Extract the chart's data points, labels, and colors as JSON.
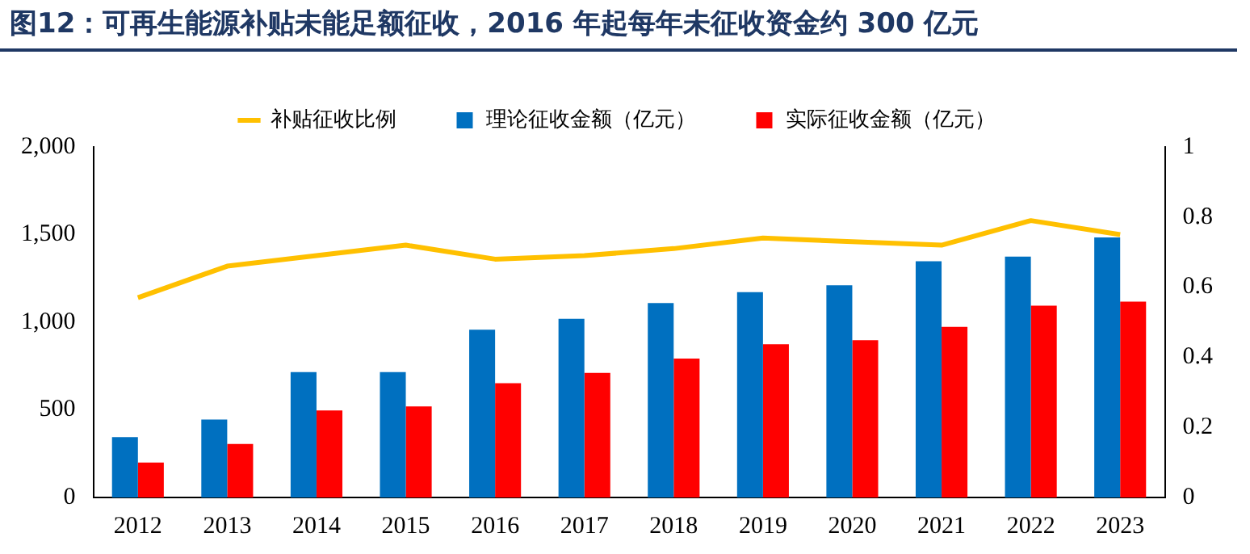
{
  "chart_data": {
    "type": "bar",
    "title": "图12：可再生能源补贴未能足额征收，2016 年起每年未征收资金约 300 亿元",
    "categories": [
      "2012",
      "2013",
      "2014",
      "2015",
      "2016",
      "2017",
      "2018",
      "2019",
      "2020",
      "2021",
      "2022",
      "2023"
    ],
    "series": [
      {
        "name": "理论征收金额（亿元）",
        "color": "#0070c0",
        "values": [
          344,
          445,
          715,
          715,
          957,
          1020,
          1109,
          1172,
          1211,
          1348,
          1375,
          1484
        ]
      },
      {
        "name": "实际征收金额（亿元）",
        "color": "#ff0000",
        "values": [
          199,
          305,
          496,
          520,
          652,
          711,
          793,
          875,
          898,
          973,
          1094,
          1117
        ]
      },
      {
        "name": "补贴征收比例",
        "type": "line",
        "axis": "y2",
        "color": "#ffc000",
        "values": [
          0.57,
          0.66,
          0.69,
          0.72,
          0.68,
          0.69,
          0.71,
          0.74,
          0.73,
          0.72,
          0.79,
          0.75
        ]
      }
    ],
    "ylim": [
      0,
      2000
    ],
    "yticks": [
      0,
      {
        "value": 500,
        "label": "500"
      },
      {
        "value": 1000,
        "label": "1,000"
      },
      {
        "value": 1500,
        "label": "1,500"
      },
      {
        "value": 2000,
        "label": "2,000"
      }
    ],
    "y2lim": [
      0,
      1
    ],
    "y2ticks": [
      0,
      0.2,
      0.4,
      0.6,
      0.8,
      1
    ],
    "legend": "top",
    "grid": false,
    "marker": "none"
  }
}
